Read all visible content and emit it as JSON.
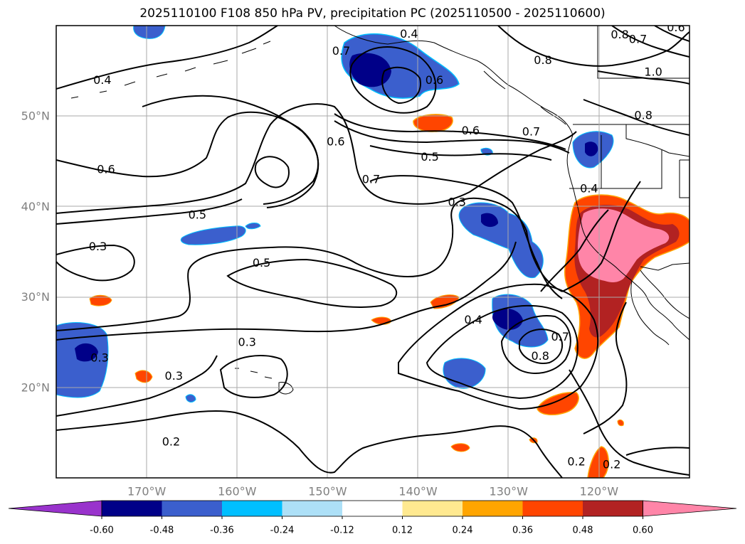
{
  "title": "2025110100 F108 850 hPa PV, precipitation PC (2025110500 - 2025110600)",
  "map": {
    "lon_ticks": [
      {
        "lon": -170,
        "label": "170°W"
      },
      {
        "lon": -160,
        "label": "160°W"
      },
      {
        "lon": -150,
        "label": "150°W"
      },
      {
        "lon": -140,
        "label": "140°W"
      },
      {
        "lon": -130,
        "label": "130°W"
      },
      {
        "lon": -120,
        "label": "120°W"
      }
    ],
    "lat_ticks": [
      {
        "lat": 50,
        "label": "50°N"
      },
      {
        "lat": 40,
        "label": "40°N"
      },
      {
        "lat": 30,
        "label": "30°N"
      },
      {
        "lat": 20,
        "label": "20°N"
      }
    ],
    "grid": true
  },
  "pv_contour_labels": [
    {
      "text": "0.4",
      "lon": -141,
      "lat": 59.1
    },
    {
      "text": "0.4",
      "lon": -174.9,
      "lat": 54.0
    },
    {
      "text": "0.6",
      "lon": -138.2,
      "lat": 54.0
    },
    {
      "text": "0.6",
      "lon": -149.1,
      "lat": 47.2
    },
    {
      "text": "0.6",
      "lon": -174.5,
      "lat": 44.1
    },
    {
      "text": "0.7",
      "lon": -145.2,
      "lat": 43.0
    },
    {
      "text": "0.7",
      "lon": -148.5,
      "lat": 57.2
    },
    {
      "text": "0.6",
      "lon": -134.2,
      "lat": 48.4
    },
    {
      "text": "0.7",
      "lon": -127.5,
      "lat": 48.3
    },
    {
      "text": "0.5",
      "lon": -138.7,
      "lat": 45.5
    },
    {
      "text": "0.3",
      "lon": -135.7,
      "lat": 40.5
    },
    {
      "text": "0.5",
      "lon": -164.4,
      "lat": 39.1
    },
    {
      "text": "0.3",
      "lon": -175.4,
      "lat": 35.6
    },
    {
      "text": "0.5",
      "lon": -157.3,
      "lat": 33.8
    },
    {
      "text": "0.4",
      "lon": -133.9,
      "lat": 27.5
    },
    {
      "text": "0.3",
      "lon": -158.9,
      "lat": 25.0
    },
    {
      "text": "0.3",
      "lon": -175.2,
      "lat": 23.3
    },
    {
      "text": "0.3",
      "lon": -167.0,
      "lat": 21.3
    },
    {
      "text": "0.8",
      "lon": -126.5,
      "lat": 23.5
    },
    {
      "text": "0.7",
      "lon": -124.3,
      "lat": 25.6
    },
    {
      "text": "0.2",
      "lon": -167.3,
      "lat": 14.0
    },
    {
      "text": "0.2",
      "lon": -122.5,
      "lat": 11.8
    },
    {
      "text": "0.2",
      "lon": -118.6,
      "lat": 11.5
    },
    {
      "text": "0.4",
      "lon": -121.1,
      "lat": 42.0
    },
    {
      "text": "0.8",
      "lon": -126.2,
      "lat": 56.2
    },
    {
      "text": "0.8",
      "lon": -117.7,
      "lat": 59.0
    },
    {
      "text": "0.7",
      "lon": -115.7,
      "lat": 58.5
    },
    {
      "text": "0.6",
      "lon": -111.5,
      "lat": 59.8
    },
    {
      "text": "1.0",
      "lon": -114.0,
      "lat": 54.9
    },
    {
      "text": "0.8",
      "lon": -115.1,
      "lat": 50.1
    }
  ],
  "colorbar": {
    "extend": "both",
    "boundaries": [
      "-0.60",
      "-0.48",
      "-0.36",
      "-0.24",
      "-0.12",
      "0.12",
      "0.24",
      "0.36",
      "0.48",
      "0.60"
    ],
    "colors": [
      "#9933cc",
      "#000088",
      "#3b5fcd",
      "#00bfff",
      "#ade0f7",
      "#ffffff",
      "#ffe990",
      "#ffa500",
      "#ff4500",
      "#b22222",
      "#ff85a8"
    ]
  }
}
